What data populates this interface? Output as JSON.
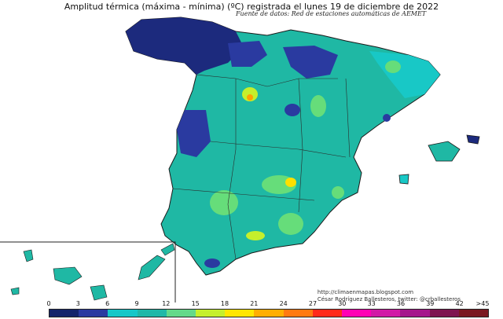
{
  "map": {
    "title": "Amplitud térmica (máxima - mínima) (ºC) registrada el lunes 19 de diciembre de 2022",
    "subtitle": "Fuente de datos: Red de estaciones automáticas de AEMET",
    "credits": {
      "url": "http://climaenmapas.blogspot.com",
      "author": "César Rodríguez Ballesteros, twitter: @crballesteros"
    },
    "colors": {
      "c0": "#14246b",
      "c3": "#2a3aa0",
      "c6": "#16c7c8",
      "c9": "#20b8a8",
      "c12": "#66dd7a",
      "c15": "#c5ef2c",
      "c18": "#ffe000",
      "c21": "#ffa200",
      "c24": "#ff5a14",
      "c27": "#ff2222",
      "c30": "#ff00ff",
      "c33": "#c0139a",
      "c36": "#8a1670",
      "c39": "#6e1030",
      "c42": "#7a1820"
    }
  },
  "legend": {
    "ticks": [
      "0",
      "3",
      "6",
      "9",
      "12",
      "15",
      "18",
      "21",
      "24",
      "27",
      "30",
      "33",
      "36",
      "39",
      "42",
      ">45"
    ],
    "colors": [
      "#14246b",
      "#2a3aa0",
      "#16c7c8",
      "#20b8a8",
      "#63d98a",
      "#c5ef2c",
      "#ffe600",
      "#ffae00",
      "#ff7a10",
      "#ff2a1a",
      "#ff00b4",
      "#d11aa6",
      "#a5168c",
      "#7e1450",
      "#7a1820"
    ]
  }
}
